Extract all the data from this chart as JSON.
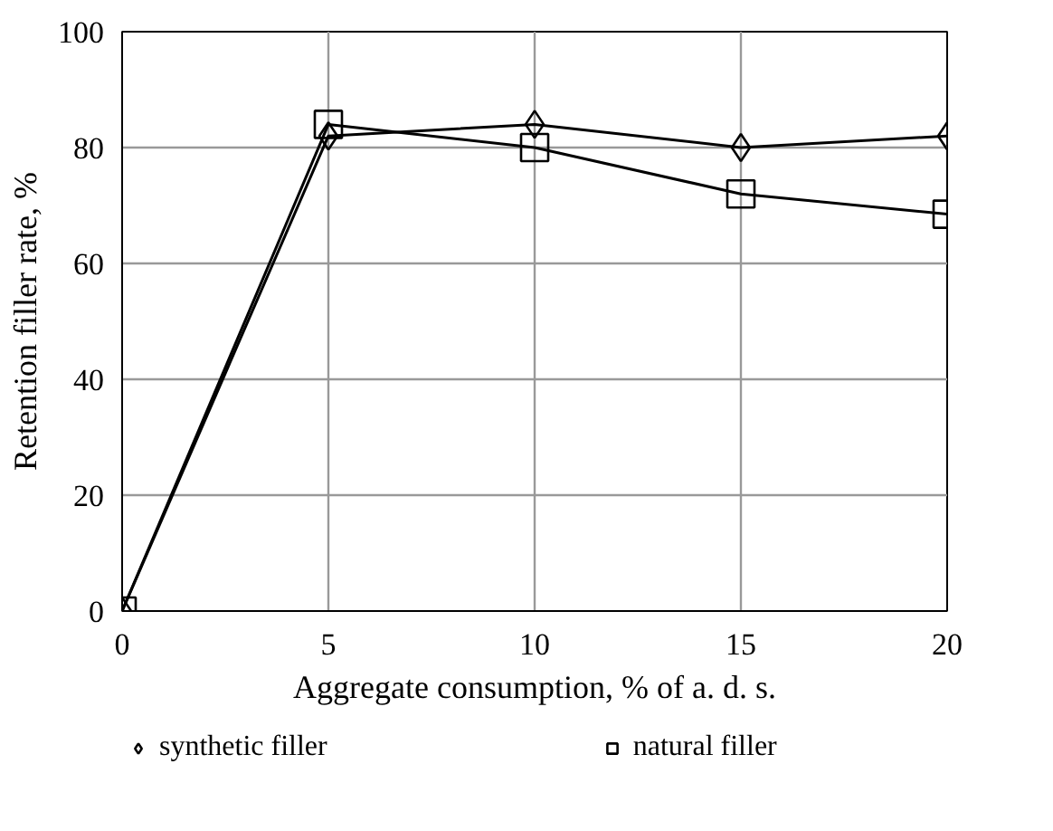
{
  "chart_data": {
    "type": "line",
    "xlabel": "Aggregate consumption, % of a. d. s.",
    "ylabel": "Retention filler rate, %",
    "x": [
      0,
      5,
      10,
      15,
      20
    ],
    "series": [
      {
        "name": "synthetic filler",
        "color": "#000000",
        "marker": "diamond",
        "values": [
          0,
          82,
          84,
          80,
          82
        ]
      },
      {
        "name": "natural filler",
        "color": "#000000",
        "marker": "square",
        "values": [
          0,
          84,
          80,
          72,
          68.5
        ]
      }
    ],
    "xlim": [
      0,
      20
    ],
    "xticks": [
      0,
      5,
      10,
      15,
      20
    ],
    "ylim": [
      0,
      100
    ],
    "yticks": [
      0,
      20,
      40,
      60,
      80,
      100
    ],
    "grid": true,
    "legend": "bottom",
    "line_style": "solid"
  }
}
